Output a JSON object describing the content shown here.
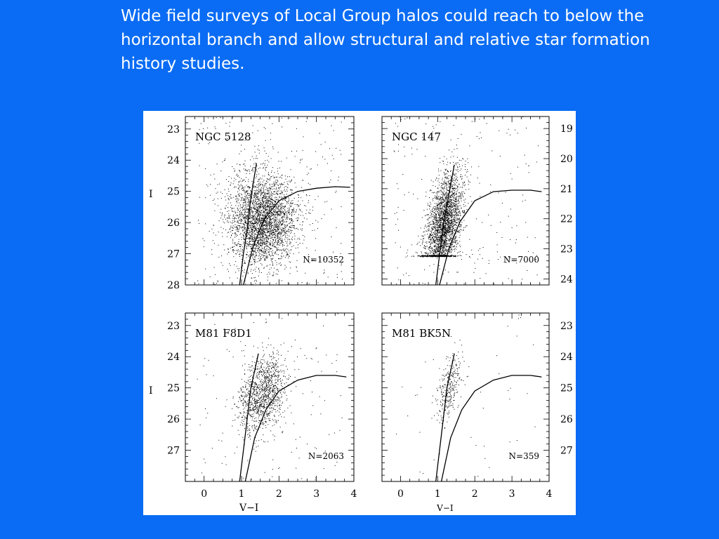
{
  "slide": {
    "caption": "Wide field surveys of Local Group halos could reach to below the horizontal branch and allow structural and relative star formation history studies.",
    "background_color": "#0a6cf4",
    "text_color": "#ffffff"
  },
  "chart_data": [
    {
      "type": "scatter",
      "id": "ngc5128",
      "title": "NGC 5128",
      "count_label": "N=10352",
      "xlabel": "",
      "ylabel": "I",
      "xlim": [
        -0.5,
        4.0
      ],
      "ylim": [
        28,
        22.6
      ],
      "y_ticks": [
        23,
        24,
        25,
        26,
        27,
        28
      ],
      "y_tick_side": "left",
      "rgb_sequence": {
        "x": [
          0.95,
          1.05,
          1.15,
          1.25,
          1.4
        ],
        "y": [
          28.0,
          27.0,
          26.2,
          25.2,
          24.1
        ]
      },
      "horizontal_branch": {
        "x": [
          1.05,
          1.3,
          1.6,
          2.0,
          2.5,
          3.0,
          3.5,
          3.9
        ],
        "y": [
          28.0,
          26.8,
          25.9,
          25.3,
          25.0,
          24.9,
          24.85,
          24.87
        ]
      },
      "point_density": {
        "center": [
          1.55,
          25.9
        ],
        "spread": [
          0.45,
          0.75
        ],
        "displayed_points": 3000
      },
      "sparse_points": 250
    },
    {
      "type": "scatter",
      "id": "ngc147",
      "title": "NGC 147",
      "count_label": "N=7000",
      "xlabel": "",
      "ylabel": "",
      "xlim": [
        -0.5,
        4.0
      ],
      "ylim": [
        24.2,
        18.6
      ],
      "y_ticks": [
        19,
        20,
        21,
        22,
        23,
        24
      ],
      "y_tick_side": "right",
      "rgb_sequence": {
        "x": [
          0.95,
          1.05,
          1.15,
          1.3,
          1.45
        ],
        "y": [
          24.2,
          23.2,
          22.2,
          21.2,
          20.2
        ]
      },
      "horizontal_branch": {
        "x": [
          1.05,
          1.3,
          1.6,
          2.0,
          2.5,
          3.0,
          3.5,
          3.8
        ],
        "y": [
          24.2,
          23.0,
          22.1,
          21.4,
          21.1,
          21.05,
          21.05,
          21.1
        ]
      },
      "point_density": {
        "center": [
          1.15,
          22.3
        ],
        "spread": [
          0.22,
          0.9
        ],
        "displayed_points": 2600
      },
      "sparse_points": 220
    },
    {
      "type": "scatter",
      "id": "m81f8d1",
      "title": "M81 F8D1",
      "count_label": "N=2063",
      "xlabel": "V−I",
      "ylabel": "I",
      "xlim": [
        -0.5,
        4.0
      ],
      "ylim": [
        28,
        22.6
      ],
      "y_ticks": [
        23,
        24,
        25,
        26,
        27
      ],
      "y_tick_side": "left",
      "x_ticks": [
        0,
        1,
        2,
        3,
        4
      ],
      "rgb_sequence": {
        "x": [
          0.95,
          1.05,
          1.15,
          1.25,
          1.45
        ],
        "y": [
          28.0,
          27.0,
          26.0,
          25.0,
          23.9
        ]
      },
      "horizontal_branch": {
        "x": [
          1.1,
          1.35,
          1.65,
          2.0,
          2.5,
          3.0,
          3.5,
          3.8
        ],
        "y": [
          28.0,
          26.6,
          25.7,
          25.1,
          24.75,
          24.6,
          24.6,
          24.65
        ]
      },
      "point_density": {
        "center": [
          1.55,
          25.2
        ],
        "spread": [
          0.3,
          0.6
        ],
        "displayed_points": 1200
      },
      "sparse_points": 120
    },
    {
      "type": "scatter",
      "id": "m81bk5n",
      "title": "M81 BK5N",
      "count_label": "N=359",
      "xlabel": "V−I",
      "ylabel": "",
      "xlim": [
        -0.5,
        4.0
      ],
      "ylim": [
        28,
        22.6
      ],
      "y_ticks": [
        23,
        24,
        25,
        26,
        27
      ],
      "y_tick_side": "right",
      "x_ticks": [
        0,
        1,
        2,
        3,
        4
      ],
      "rgb_sequence": {
        "x": [
          0.95,
          1.05,
          1.15,
          1.25,
          1.45
        ],
        "y": [
          28.0,
          27.0,
          26.0,
          25.0,
          23.9
        ]
      },
      "horizontal_branch": {
        "x": [
          1.1,
          1.35,
          1.65,
          2.0,
          2.5,
          3.0,
          3.5,
          3.8
        ],
        "y": [
          28.0,
          26.6,
          25.7,
          25.1,
          24.75,
          24.6,
          24.6,
          24.65
        ]
      },
      "point_density": {
        "center": [
          1.3,
          25.0
        ],
        "spread": [
          0.14,
          0.55
        ],
        "displayed_points": 300
      },
      "sparse_points": 40
    }
  ]
}
